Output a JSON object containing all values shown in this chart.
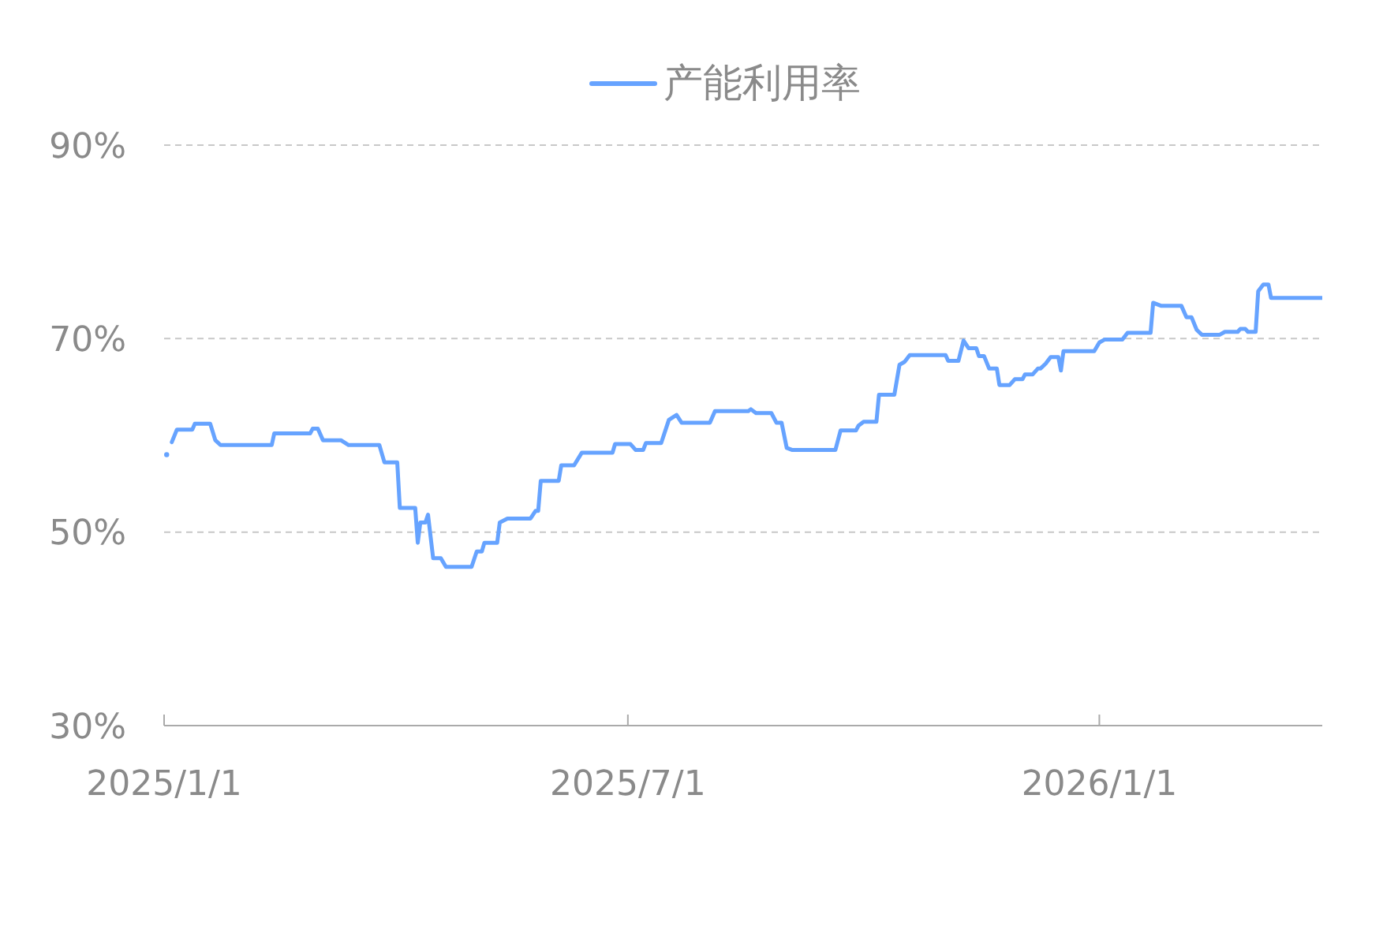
{
  "chart_data": {
    "type": "line",
    "x": [
      "2025-01-02",
      "2025-01-03",
      "2025-01-04",
      "2025-01-06",
      "2025-01-12",
      "2025-01-13",
      "2025-01-19",
      "2025-01-21",
      "2025-01-23",
      "2025-02-12",
      "2025-02-13",
      "2025-02-27",
      "2025-02-28",
      "2025-03-02",
      "2025-03-04",
      "2025-03-11",
      "2025-03-14",
      "2025-03-26",
      "2025-03-28",
      "2025-04-02",
      "2025-04-03",
      "2025-04-09",
      "2025-04-10",
      "2025-04-11",
      "2025-04-13",
      "2025-04-14",
      "2025-04-16",
      "2025-04-19",
      "2025-04-21",
      "2025-05-01",
      "2025-05-03",
      "2025-05-05",
      "2025-05-06",
      "2025-05-11",
      "2025-05-12",
      "2025-05-15",
      "2025-05-24",
      "2025-05-26",
      "2025-05-27",
      "2025-05-28",
      "2025-06-04",
      "2025-06-05",
      "2025-06-10",
      "2025-06-13",
      "2025-06-25",
      "2025-06-26",
      "2025-07-02",
      "2025-07-04",
      "2025-07-07",
      "2025-07-08",
      "2025-07-14",
      "2025-07-17",
      "2025-07-20",
      "2025-07-22",
      "2025-08-02",
      "2025-08-04",
      "2025-08-17",
      "2025-08-18",
      "2025-08-20",
      "2025-08-26",
      "2025-08-28",
      "2025-08-30",
      "2025-09-01",
      "2025-09-03",
      "2025-09-20",
      "2025-09-22",
      "2025-09-28",
      "2025-09-29",
      "2025-10-01",
      "2025-10-06",
      "2025-10-07",
      "2025-10-13",
      "2025-10-15",
      "2025-10-17",
      "2025-10-19",
      "2025-11-02",
      "2025-11-03",
      "2025-11-07",
      "2025-11-09",
      "2025-11-11",
      "2025-11-14",
      "2025-11-15",
      "2025-11-17",
      "2025-11-19",
      "2025-11-22",
      "2025-11-23",
      "2025-11-27",
      "2025-11-29",
      "2025-12-02",
      "2025-12-03",
      "2025-12-06",
      "2025-12-08",
      "2025-12-09",
      "2025-12-11",
      "2025-12-13",
      "2025-12-16",
      "2025-12-17",
      "2025-12-18",
      "2025-12-30",
      "2026-01-01",
      "2026-01-03",
      "2026-01-10",
      "2026-01-12",
      "2026-01-21",
      "2026-01-22",
      "2026-01-25",
      "2026-02-02",
      "2026-02-04",
      "2026-02-06",
      "2026-02-08",
      "2026-02-10",
      "2026-02-17",
      "2026-02-19",
      "2026-02-24",
      "2026-02-25",
      "2026-02-27",
      "2026-02-28",
      "2026-03-03",
      "2026-03-04",
      "2026-03-06",
      "2026-03-08",
      "2026-03-09",
      "2026-03-29"
    ],
    "series": [
      {
        "name": "产能利用率",
        "color": "#66a3ff",
        "values": [
          58.0,
          null,
          59.3,
          60.6,
          60.6,
          61.2,
          61.2,
          59.5,
          59.0,
          59.0,
          60.2,
          60.2,
          60.7,
          60.7,
          59.5,
          59.5,
          59.0,
          59.0,
          57.2,
          57.2,
          52.5,
          52.5,
          48.9,
          51.0,
          51.0,
          51.8,
          47.3,
          47.3,
          46.4,
          46.4,
          48.0,
          48.0,
          48.9,
          48.9,
          51.0,
          51.4,
          51.4,
          52.2,
          52.2,
          55.3,
          55.3,
          56.9,
          56.9,
          58.2,
          58.2,
          59.1,
          59.1,
          58.5,
          58.5,
          59.2,
          59.2,
          61.6,
          62.1,
          61.3,
          61.3,
          62.5,
          62.5,
          62.7,
          62.3,
          62.3,
          61.3,
          61.3,
          58.7,
          58.5,
          58.5,
          60.5,
          60.5,
          61.0,
          61.4,
          61.4,
          64.2,
          64.2,
          67.3,
          67.6,
          68.3,
          68.3,
          67.7,
          67.7,
          69.8,
          69.0,
          69.0,
          68.2,
          68.2,
          66.9,
          66.9,
          65.2,
          65.2,
          65.8,
          65.8,
          66.3,
          66.3,
          66.9,
          66.9,
          67.4,
          68.1,
          68.1,
          66.7,
          68.7,
          68.7,
          69.6,
          69.9,
          69.9,
          70.6,
          70.6,
          73.7,
          73.4,
          73.4,
          72.2,
          72.2,
          70.9,
          70.4,
          70.4,
          70.7,
          70.7,
          71.0,
          71.0,
          70.7,
          70.7,
          74.9,
          75.6,
          75.6,
          74.2,
          74.2
        ]
      }
    ],
    "xlim": [
      "2025-01-01",
      "2026-03-29"
    ],
    "xticks": [
      {
        "value": "2025-01-01",
        "label": "2025/1/1"
      },
      {
        "value": "2025-07-01",
        "label": "2025/7/1"
      },
      {
        "value": "2026-01-01",
        "label": "2026/1/1"
      }
    ],
    "ylim": [
      30,
      90
    ],
    "yticks": [
      {
        "value": 30,
        "label": "30%"
      },
      {
        "value": 50,
        "label": "50%"
      },
      {
        "value": 70,
        "label": "70%"
      },
      {
        "value": 90,
        "label": "90%"
      }
    ],
    "grid": "y",
    "legend": "top"
  }
}
